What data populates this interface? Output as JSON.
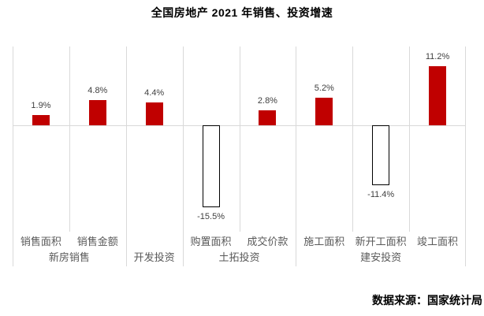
{
  "title": "全国房地产 2021 年销售、投资增速",
  "source_note": "数据来源：国家统计局",
  "chart_data": {
    "type": "bar",
    "title": "全国房地产 2021 年销售、投资增速",
    "categories": [
      "销售面积",
      "销售金额",
      "开发投资",
      "购置面积",
      "成交价款",
      "施工面积",
      "新开工面积",
      "竣工面积"
    ],
    "values": [
      1.9,
      4.8,
      4.4,
      -15.5,
      2.8,
      5.2,
      -11.4,
      11.2
    ],
    "data_labels": [
      "1.9%",
      "4.8%",
      "4.4%",
      "-15.5%",
      "2.8%",
      "5.2%",
      "-11.4%",
      "11.2%"
    ],
    "unit": "%",
    "axis": {
      "row1": [
        "销售面积",
        "销售金额",
        "",
        "购置面积",
        "成交价款",
        "施工面积",
        "新开工面积",
        "竣工面积"
      ],
      "row2": [
        {
          "label": "新房销售",
          "start": 0,
          "span": 2
        },
        {
          "label": "开发投资",
          "start": 2,
          "span": 1
        },
        {
          "label": "土拓投资",
          "start": 3,
          "span": 2
        },
        {
          "label": "建安投资",
          "start": 5,
          "span": 3
        }
      ]
    },
    "ylim": [
      -20,
      15
    ],
    "grid": "vertical-column-separators, zero-line only, no y-axis tick labels",
    "legend": "none",
    "colors": {
      "positive_bar": "#c00000",
      "negative_bar_fill": "#ffffff",
      "negative_bar_border": "#000000",
      "gridline": "#d9d9d9",
      "value_label": "#404040",
      "category_label": "#595959",
      "title_text": "#000000"
    },
    "source_note": "数据来源：国家统计局"
  }
}
